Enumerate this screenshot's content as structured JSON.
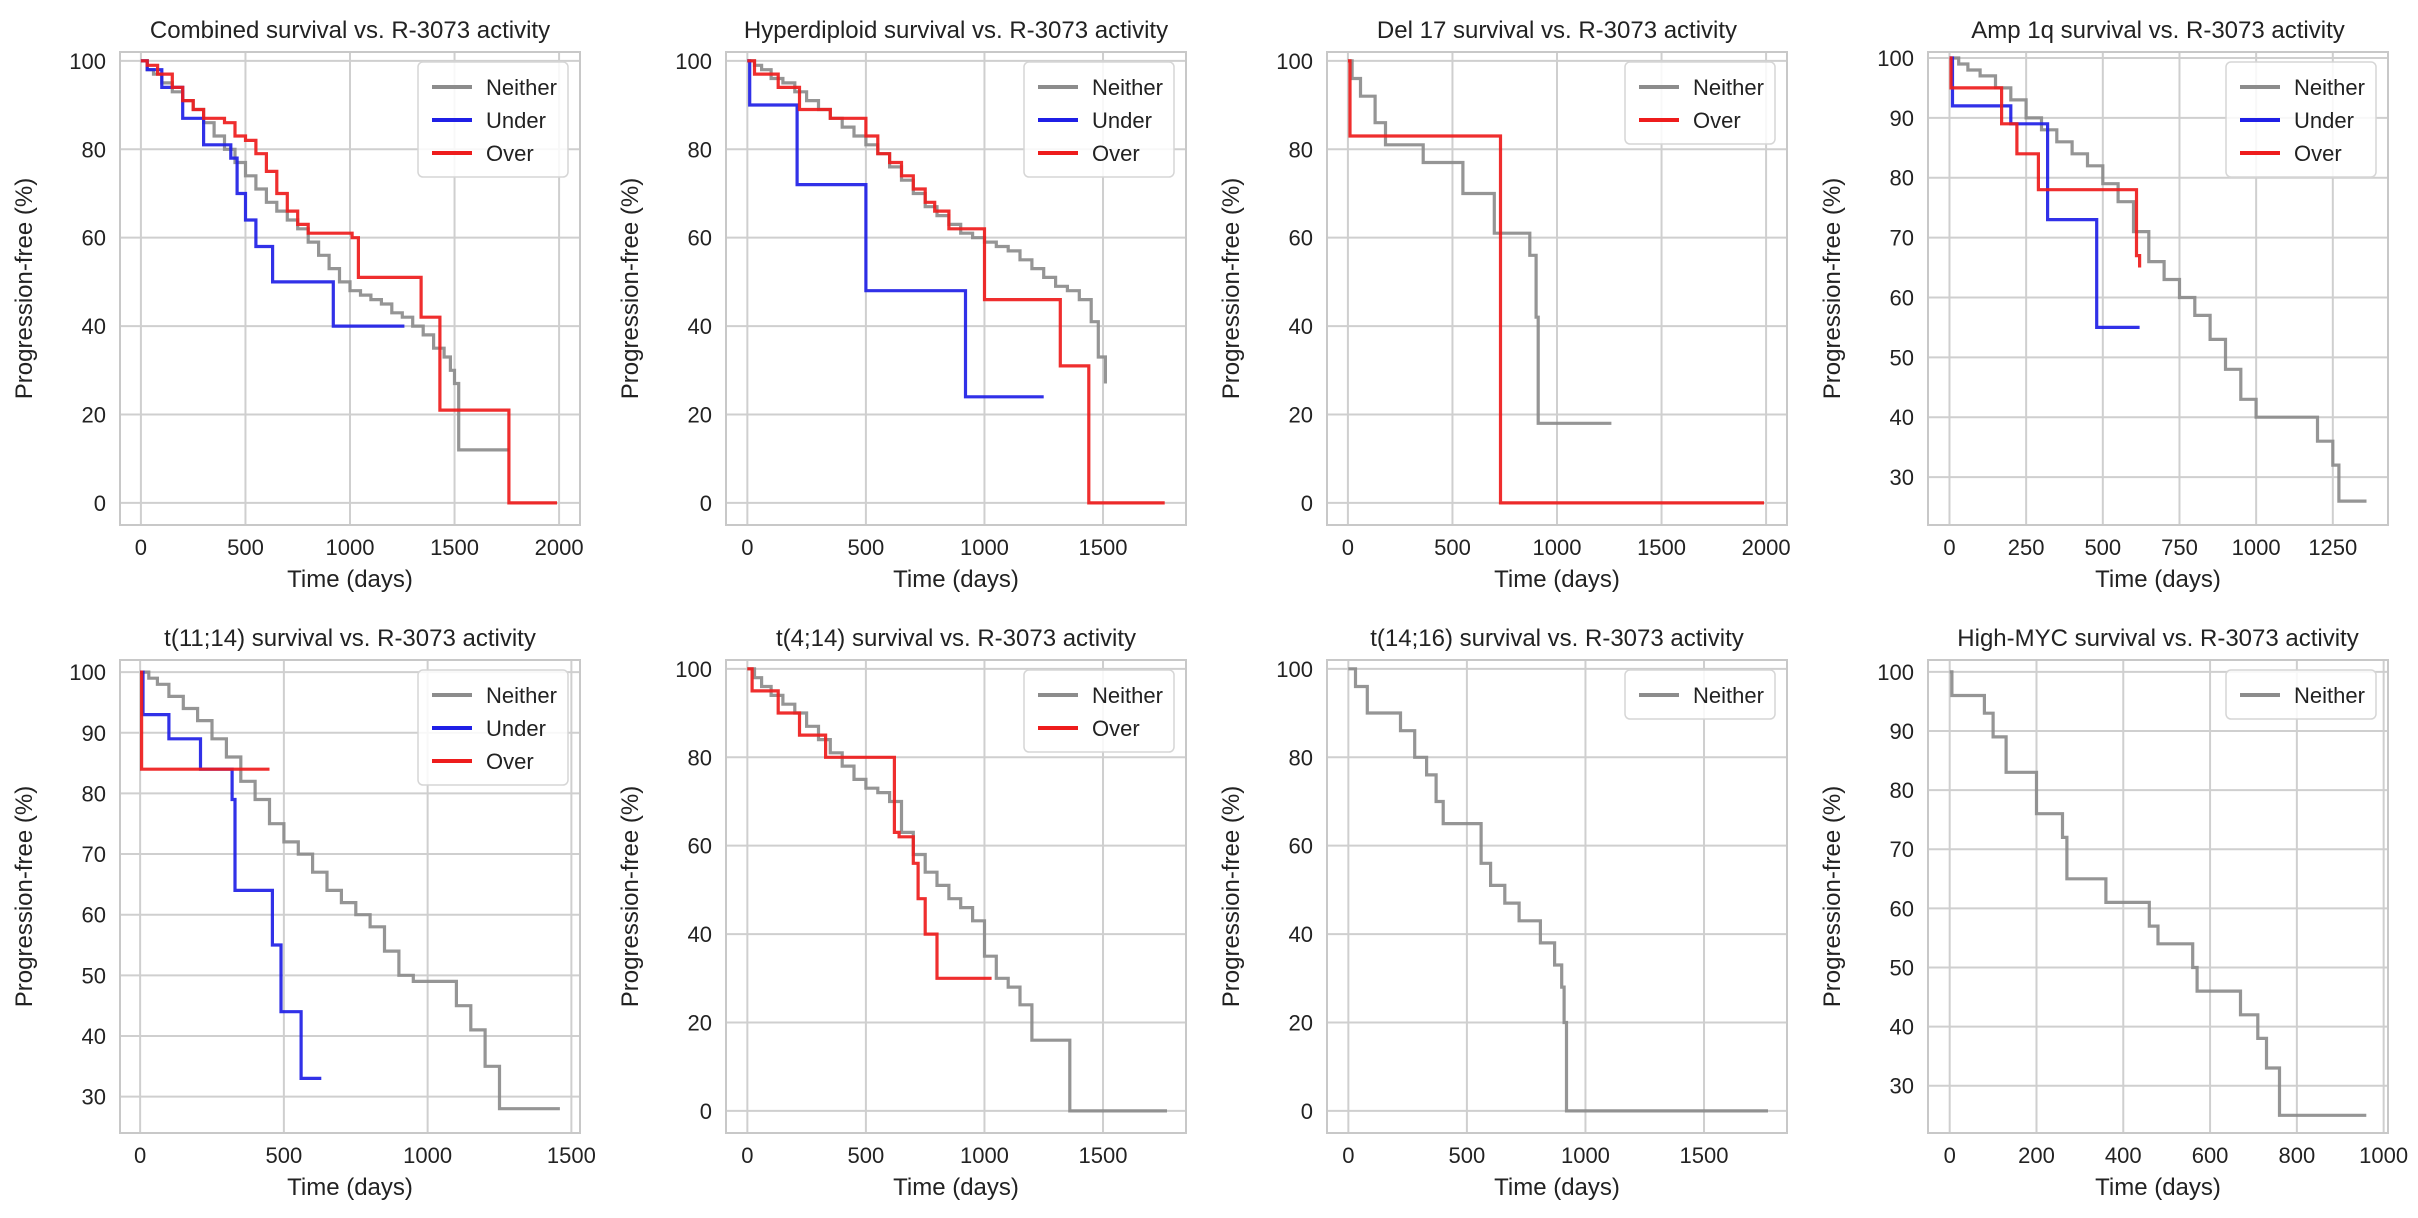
{
  "colors": {
    "Neither": "#8c8c8c",
    "Under": "#1f1fe6",
    "Over": "#ee1c1c",
    "grid": "#cfcfcf",
    "frame": "#c8c8c8"
  },
  "chart_data": [
    {
      "type": "line",
      "title": "Combined survival vs. R-3073 activity",
      "xlabel": "Time (days)",
      "ylabel": "Progression-free (%)",
      "xlim": [
        -100,
        2100
      ],
      "ylim": [
        -5,
        102
      ],
      "xticks": [
        0,
        500,
        1000,
        1500,
        2000
      ],
      "yticks": [
        0,
        20,
        40,
        60,
        80,
        100
      ],
      "grid": true,
      "legend": "top-right",
      "series": [
        {
          "name": "Neither",
          "x": [
            0,
            30,
            60,
            100,
            150,
            200,
            250,
            300,
            350,
            400,
            450,
            500,
            550,
            600,
            650,
            700,
            750,
            800,
            850,
            900,
            950,
            1000,
            1050,
            1100,
            1150,
            1200,
            1250,
            1300,
            1350,
            1400,
            1450,
            1480,
            1500,
            1520,
            1760
          ],
          "y": [
            100,
            98,
            97,
            95,
            93,
            91,
            89,
            86,
            83,
            80,
            77,
            74,
            71,
            68,
            66,
            64,
            62,
            59,
            56,
            53,
            50,
            48,
            47,
            46,
            45,
            43,
            42,
            40,
            38,
            35,
            33,
            30,
            27,
            12,
            12
          ]
        },
        {
          "name": "Under",
          "x": [
            0,
            30,
            100,
            200,
            300,
            430,
            460,
            500,
            550,
            630,
            920,
            1260
          ],
          "y": [
            100,
            98,
            94,
            87,
            81,
            78,
            70,
            64,
            58,
            50,
            40,
            40
          ]
        },
        {
          "name": "Over",
          "x": [
            0,
            30,
            80,
            150,
            200,
            250,
            300,
            400,
            450,
            500,
            550,
            600,
            650,
            700,
            750,
            800,
            1010,
            1040,
            1340,
            1430,
            1760,
            1990
          ],
          "y": [
            100,
            99,
            97,
            94,
            91,
            89,
            87,
            86,
            83,
            82,
            79,
            75,
            70,
            66,
            63,
            61,
            60,
            51,
            42,
            21,
            0,
            0
          ]
        }
      ]
    },
    {
      "type": "line",
      "title": "Hyperdiploid survival vs. R-3073 activity",
      "xlabel": "Time (days)",
      "ylabel": "Progression-free (%)",
      "xlim": [
        -90,
        1850
      ],
      "ylim": [
        -5,
        102
      ],
      "xticks": [
        0,
        500,
        1000,
        1500
      ],
      "yticks": [
        0,
        20,
        40,
        60,
        80,
        100
      ],
      "grid": true,
      "legend": "top-right",
      "series": [
        {
          "name": "Neither",
          "x": [
            0,
            30,
            60,
            100,
            150,
            200,
            250,
            300,
            350,
            400,
            450,
            500,
            550,
            600,
            650,
            700,
            750,
            800,
            850,
            900,
            950,
            1000,
            1050,
            1100,
            1150,
            1200,
            1250,
            1300,
            1350,
            1400,
            1450,
            1480,
            1500,
            1510
          ],
          "y": [
            100,
            99,
            98,
            96,
            95,
            93,
            91,
            89,
            87,
            85,
            83,
            81,
            79,
            76,
            73,
            70,
            67,
            65,
            63,
            61,
            60,
            59,
            58,
            57,
            55,
            53,
            51,
            49,
            48,
            46,
            41,
            33,
            33,
            27
          ]
        },
        {
          "name": "Under",
          "x": [
            0,
            10,
            210,
            500,
            920,
            1250
          ],
          "y": [
            100,
            90,
            72,
            48,
            24,
            24
          ]
        },
        {
          "name": "Over",
          "x": [
            0,
            30,
            130,
            220,
            350,
            500,
            550,
            600,
            650,
            700,
            750,
            790,
            850,
            1000,
            1320,
            1440,
            1760
          ],
          "y": [
            100,
            97,
            94,
            89,
            87,
            83,
            79,
            77,
            74,
            71,
            68,
            66,
            62,
            46,
            31,
            0,
            0
          ]
        }
      ]
    },
    {
      "type": "line",
      "title": "Del 17 survival vs. R-3073 activity",
      "xlabel": "Time (days)",
      "ylabel": "Progression-free (%)",
      "xlim": [
        -100,
        2100
      ],
      "ylim": [
        -5,
        102
      ],
      "xticks": [
        0,
        500,
        1000,
        1500,
        2000
      ],
      "yticks": [
        0,
        20,
        40,
        60,
        80,
        100
      ],
      "grid": true,
      "legend": "top-right",
      "series": [
        {
          "name": "Neither",
          "x": [
            0,
            20,
            60,
            130,
            180,
            360,
            550,
            700,
            870,
            900,
            910,
            1260
          ],
          "y": [
            100,
            96,
            92,
            86,
            81,
            77,
            70,
            61,
            56,
            42,
            18,
            18
          ]
        },
        {
          "name": "Over",
          "x": [
            0,
            10,
            730,
            1990
          ],
          "y": [
            100,
            83,
            0,
            0
          ]
        }
      ]
    },
    {
      "type": "line",
      "title": "Amp 1q survival vs. R-3073 activity",
      "xlabel": "Time (days)",
      "ylabel": "Progression-free (%)",
      "xlim": [
        -70,
        1430
      ],
      "ylim": [
        22,
        101
      ],
      "xticks": [
        0,
        250,
        500,
        750,
        1000,
        1250
      ],
      "yticks": [
        30,
        40,
        50,
        60,
        70,
        80,
        90,
        100
      ],
      "grid": true,
      "legend": "top-right",
      "series": [
        {
          "name": "Neither",
          "x": [
            0,
            30,
            60,
            100,
            150,
            200,
            250,
            300,
            350,
            400,
            450,
            500,
            550,
            600,
            650,
            700,
            750,
            800,
            850,
            900,
            950,
            1000,
            1150,
            1200,
            1250,
            1270,
            1360
          ],
          "y": [
            100,
            99,
            98,
            97,
            95,
            93,
            90,
            88,
            86,
            84,
            82,
            79,
            76,
            71,
            66,
            63,
            60,
            57,
            53,
            48,
            43,
            40,
            40,
            36,
            32,
            26,
            26
          ]
        },
        {
          "name": "Under",
          "x": [
            0,
            10,
            200,
            320,
            480,
            620
          ],
          "y": [
            100,
            92,
            89,
            73,
            55,
            55
          ]
        },
        {
          "name": "Over",
          "x": [
            0,
            5,
            170,
            220,
            290,
            610,
            620
          ],
          "y": [
            100,
            95,
            89,
            84,
            78,
            67,
            65
          ]
        }
      ]
    },
    {
      "type": "line",
      "title": "t(11;14) survival vs. R-3073 activity",
      "xlabel": "Time (days)",
      "ylabel": "Progression-free (%)",
      "xlim": [
        -70,
        1530
      ],
      "ylim": [
        24,
        102
      ],
      "xticks": [
        0,
        500,
        1000,
        1500
      ],
      "yticks": [
        30,
        40,
        50,
        60,
        70,
        80,
        90,
        100
      ],
      "grid": true,
      "legend": "top-right",
      "series": [
        {
          "name": "Neither",
          "x": [
            0,
            30,
            60,
            100,
            150,
            200,
            250,
            300,
            350,
            400,
            450,
            500,
            550,
            600,
            650,
            700,
            750,
            800,
            850,
            900,
            950,
            1050,
            1100,
            1150,
            1200,
            1250,
            1460
          ],
          "y": [
            100,
            99,
            98,
            96,
            94,
            92,
            89,
            86,
            82,
            79,
            75,
            72,
            70,
            67,
            64,
            62,
            60,
            58,
            54,
            50,
            49,
            49,
            45,
            41,
            35,
            28,
            28
          ]
        },
        {
          "name": "Under",
          "x": [
            0,
            10,
            100,
            210,
            320,
            330,
            460,
            490,
            560,
            630
          ],
          "y": [
            100,
            93,
            89,
            84,
            79,
            64,
            55,
            44,
            33,
            33
          ]
        },
        {
          "name": "Over",
          "x": [
            0,
            5,
            450
          ],
          "y": [
            100,
            84,
            84
          ]
        }
      ]
    },
    {
      "type": "line",
      "title": "t(4;14) survival vs. R-3073 activity",
      "xlabel": "Time (days)",
      "ylabel": "Progression-free (%)",
      "xlim": [
        -90,
        1850
      ],
      "ylim": [
        -5,
        102
      ],
      "xticks": [
        0,
        500,
        1000,
        1500
      ],
      "yticks": [
        0,
        20,
        40,
        60,
        80,
        100
      ],
      "grid": true,
      "legend": "top-right",
      "series": [
        {
          "name": "Neither",
          "x": [
            0,
            30,
            60,
            100,
            150,
            200,
            250,
            300,
            350,
            400,
            450,
            500,
            550,
            600,
            650,
            700,
            750,
            800,
            850,
            900,
            950,
            1000,
            1050,
            1100,
            1150,
            1200,
            1360,
            1770
          ],
          "y": [
            100,
            98,
            96,
            94,
            92,
            90,
            87,
            84,
            81,
            78,
            75,
            73,
            72,
            70,
            63,
            58,
            54,
            51,
            48,
            46,
            43,
            35,
            30,
            28,
            24,
            16,
            0,
            0
          ]
        },
        {
          "name": "Over",
          "x": [
            0,
            20,
            130,
            220,
            330,
            610,
            620,
            640,
            700,
            720,
            750,
            800,
            1030
          ],
          "y": [
            100,
            95,
            90,
            85,
            80,
            80,
            63,
            62,
            56,
            48,
            40,
            30,
            30
          ]
        }
      ]
    },
    {
      "type": "line",
      "title": "t(14;16) survival vs. R-3073 activity",
      "xlabel": "Time (days)",
      "ylabel": "Progression-free (%)",
      "xlim": [
        -90,
        1850
      ],
      "ylim": [
        -5,
        102
      ],
      "xticks": [
        0,
        500,
        1000,
        1500
      ],
      "yticks": [
        0,
        20,
        40,
        60,
        80,
        100
      ],
      "grid": true,
      "legend": "top-right",
      "series": [
        {
          "name": "Neither",
          "x": [
            0,
            30,
            80,
            220,
            280,
            330,
            370,
            400,
            550,
            560,
            600,
            660,
            720,
            810,
            870,
            900,
            910,
            920,
            1770
          ],
          "y": [
            100,
            96,
            90,
            86,
            80,
            76,
            70,
            65,
            65,
            56,
            51,
            47,
            43,
            38,
            33,
            28,
            20,
            0,
            0
          ]
        }
      ]
    },
    {
      "type": "line",
      "title": "High-MYC survival vs. R-3073 activity",
      "xlabel": "Time (days)",
      "ylabel": "Progression-free (%)",
      "xlim": [
        -50,
        1010
      ],
      "ylim": [
        22,
        102
      ],
      "xticks": [
        0,
        200,
        400,
        600,
        800,
        1000
      ],
      "yticks": [
        30,
        40,
        50,
        60,
        70,
        80,
        90,
        100
      ],
      "grid": true,
      "legend": "top-right",
      "series": [
        {
          "name": "Neither",
          "x": [
            0,
            5,
            80,
            100,
            130,
            200,
            260,
            270,
            360,
            460,
            480,
            560,
            570,
            670,
            710,
            730,
            760,
            960
          ],
          "y": [
            100,
            96,
            93,
            89,
            83,
            76,
            72,
            65,
            61,
            57,
            54,
            50,
            46,
            42,
            38,
            33,
            25,
            25
          ]
        }
      ]
    }
  ]
}
